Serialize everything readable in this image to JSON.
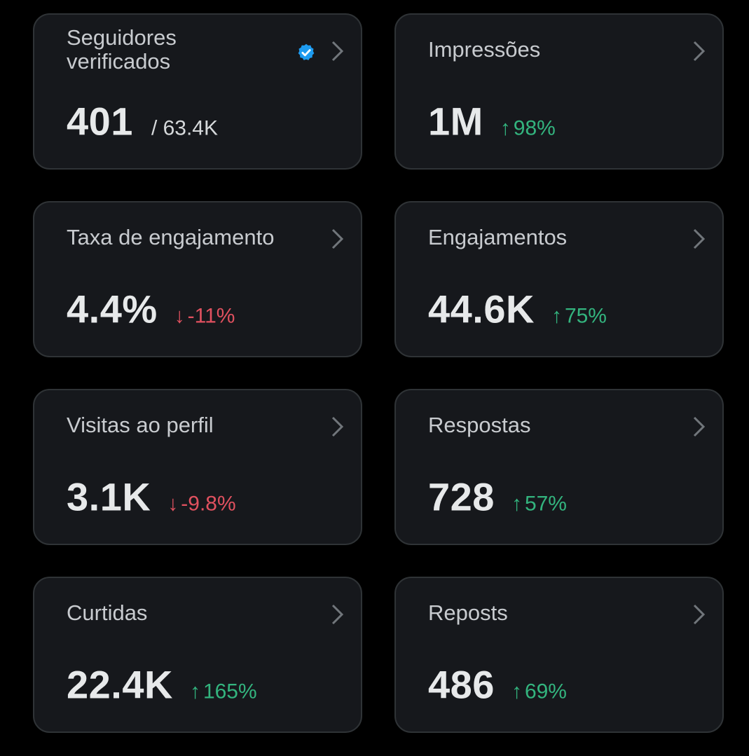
{
  "colors": {
    "background": "#000000",
    "card_background": "#16181c",
    "card_border": "#2f3336",
    "positive": "#33b47e",
    "negative": "#e0515f",
    "verified_badge": "#1d9bf0"
  },
  "cards": [
    {
      "title": "Seguidores verificados",
      "value": "401",
      "suffix": "/ 63.4K",
      "icon": "verified-badge-icon"
    },
    {
      "title": "Impressões",
      "value": "1M",
      "change": {
        "direction": "up",
        "arrow": "↑",
        "text": "98%"
      }
    },
    {
      "title": "Taxa de engajamento",
      "value": "4.4%",
      "change": {
        "direction": "down",
        "arrow": "↓",
        "text": "-11%"
      }
    },
    {
      "title": "Engajamentos",
      "value": "44.6K",
      "change": {
        "direction": "up",
        "arrow": "↑",
        "text": "75%"
      }
    },
    {
      "title": "Visitas ao perfil",
      "value": "3.1K",
      "change": {
        "direction": "down",
        "arrow": "↓",
        "text": "-9.8%"
      }
    },
    {
      "title": "Respostas",
      "value": "728",
      "change": {
        "direction": "up",
        "arrow": "↑",
        "text": "57%"
      }
    },
    {
      "title": "Curtidas",
      "value": "22.4K",
      "change": {
        "direction": "up",
        "arrow": "↑",
        "text": "165%"
      }
    },
    {
      "title": "Reposts",
      "value": "486",
      "change": {
        "direction": "up",
        "arrow": "↑",
        "text": "69%"
      }
    }
  ]
}
